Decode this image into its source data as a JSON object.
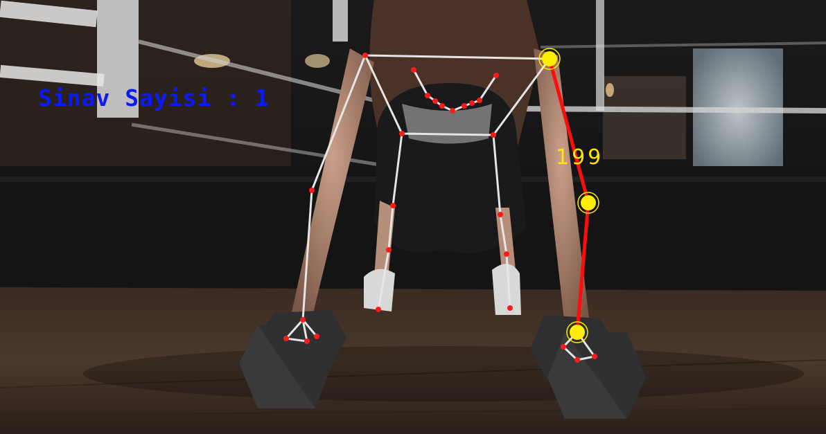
{
  "overlay": {
    "rep_counter_label": "Sinav Sayisi : 1",
    "angle_value": "199"
  },
  "colors": {
    "skeleton_line": "#e6e6e6",
    "keypoint": "#ff1a1a",
    "highlight_joint": "#ffee00",
    "highlight_limb": "#ff0d0d",
    "counter_text": "#0b19ff",
    "angle_text": "#ffe600"
  }
}
